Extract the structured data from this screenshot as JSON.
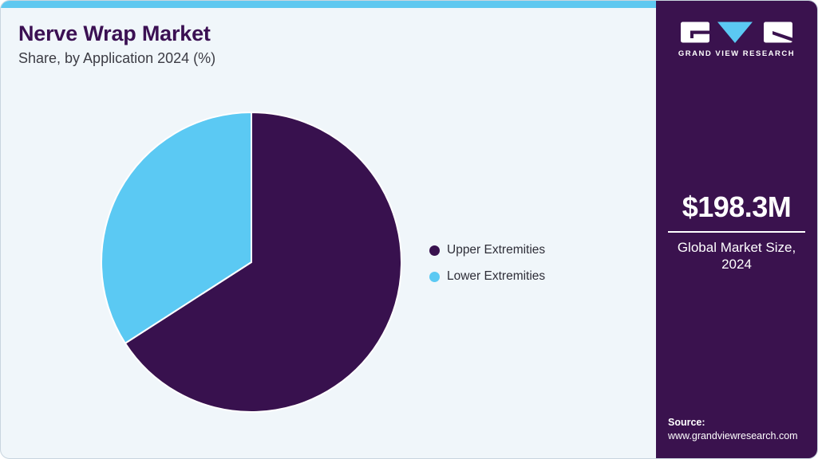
{
  "header": {
    "title": "Nerve Wrap Market",
    "subtitle": "Share, by Application 2024 (%)"
  },
  "chart_data": {
    "type": "pie",
    "title": "Nerve Wrap Market Share, by Application 2024 (%)",
    "start_angle_deg": 0,
    "direction": "clockwise",
    "legend_position": "right",
    "data_labels_shown": false,
    "slices": [
      {
        "label": "Upper Extremities",
        "value": 65.9,
        "color": "#38114E"
      },
      {
        "label": "Lower Extremities",
        "value": 34.1,
        "color": "#5BC9F3"
      }
    ]
  },
  "sidebar": {
    "logo_text": "GRAND VIEW RESEARCH",
    "market_size_value": "$198.3M",
    "market_size_label_line1": "Global Market Size,",
    "market_size_label_line2": "2024",
    "source_label": "Source:",
    "source_url": "www.grandviewresearch.com"
  },
  "theme": {
    "accent_blue": "#5FC8F0",
    "sidebar_bg": "#3A124E",
    "card_bg": "#F0F6FA",
    "title_color": "#3B1053",
    "pie_stroke": "#FFFFFF"
  }
}
